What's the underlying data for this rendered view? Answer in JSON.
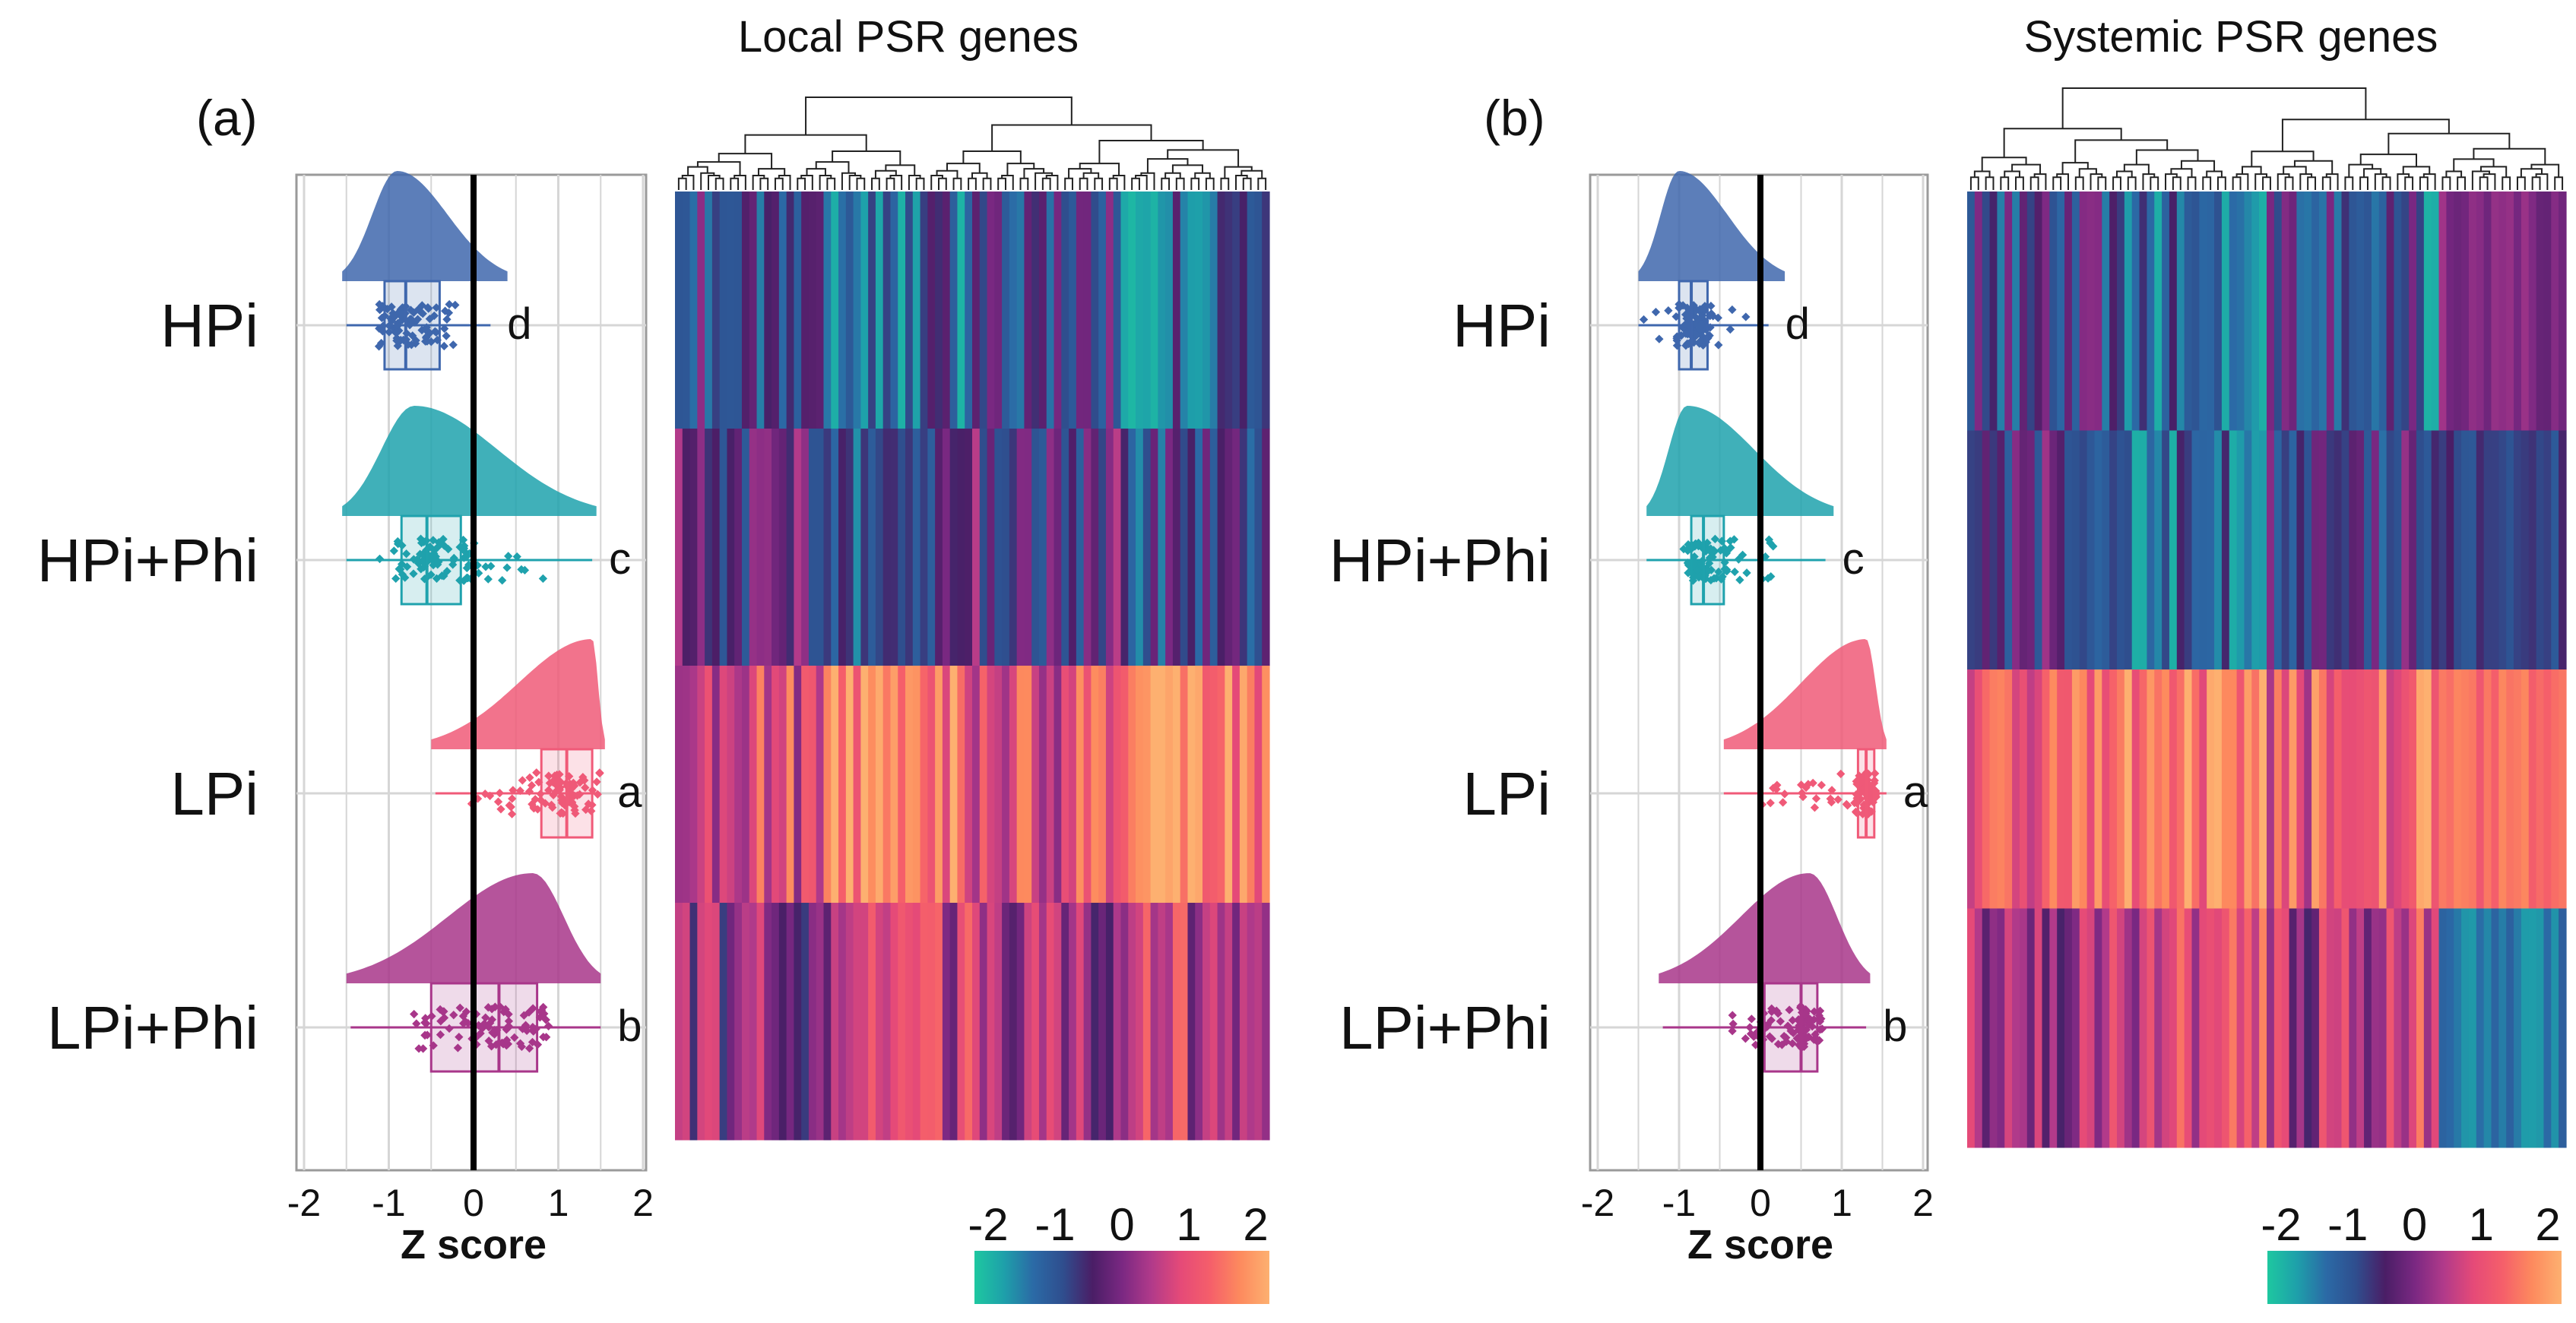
{
  "chart_data": [
    {
      "type": "raincloud",
      "panel_label": "(a)",
      "xlabel": "Z score",
      "xlim": [
        -2,
        2
      ],
      "xticks": [
        "-2",
        "-1",
        "0",
        "1",
        "2"
      ],
      "grid": true,
      "groups": [
        {
          "name": "HPi",
          "letter": "d",
          "color": "#3f67ad",
          "q1": -1.05,
          "median": -0.8,
          "q3": -0.4,
          "min": -1.5,
          "max": 0.2,
          "density_range": [
            -1.55,
            0.4
          ],
          "density_peak": -0.9
        },
        {
          "name": "HPi+Phi",
          "letter": "c",
          "color": "#1fa2ad",
          "q1": -0.85,
          "median": -0.55,
          "q3": -0.15,
          "min": -1.5,
          "max": 1.4,
          "density_range": [
            -1.55,
            1.45
          ],
          "density_peak": -0.7
        },
        {
          "name": "LPi",
          "letter": "a",
          "color": "#f05a78",
          "q1": 0.8,
          "median": 1.1,
          "q3": 1.4,
          "min": -0.45,
          "max": 1.5,
          "density_range": [
            -0.5,
            1.55
          ],
          "density_peak": 1.4
        },
        {
          "name": "LPi+Phi",
          "letter": "b",
          "color": "#a8368a",
          "q1": -0.5,
          "median": 0.3,
          "q3": 0.75,
          "min": -1.45,
          "max": 1.5,
          "density_range": [
            -1.5,
            1.5
          ],
          "density_peak": 0.7
        }
      ],
      "heatmap": {
        "title": "Local PSR genes",
        "rows": [
          "HPi",
          "HPi+Phi",
          "LPi",
          "LPi+Phi"
        ],
        "n_genes": 80
      },
      "colorbar": {
        "ticks": [
          "-2",
          "-1",
          "0",
          "1",
          "2"
        ],
        "range": [
          -2,
          2
        ]
      }
    },
    {
      "type": "raincloud",
      "panel_label": "(b)",
      "xlabel": "Z score",
      "xlim": [
        -2,
        2
      ],
      "xticks": [
        "-2",
        "-1",
        "0",
        "1",
        "2"
      ],
      "grid": true,
      "groups": [
        {
          "name": "HPi",
          "letter": "d",
          "color": "#3f67ad",
          "q1": -1.0,
          "median": -0.85,
          "q3": -0.65,
          "min": -1.5,
          "max": 0.1,
          "density_range": [
            -1.5,
            0.3
          ],
          "density_peak": -1.0
        },
        {
          "name": "HPi+Phi",
          "letter": "c",
          "color": "#1fa2ad",
          "q1": -0.85,
          "median": -0.7,
          "q3": -0.45,
          "min": -1.4,
          "max": 0.8,
          "density_range": [
            -1.4,
            0.9
          ],
          "density_peak": -0.9
        },
        {
          "name": "LPi",
          "letter": "a",
          "color": "#f05a78",
          "q1": 1.2,
          "median": 1.3,
          "q3": 1.4,
          "min": -0.45,
          "max": 1.55,
          "density_range": [
            -0.45,
            1.55
          ],
          "density_peak": 1.3
        },
        {
          "name": "LPi+Phi",
          "letter": "b",
          "color": "#a8368a",
          "q1": 0.05,
          "median": 0.5,
          "q3": 0.7,
          "min": -1.2,
          "max": 1.3,
          "density_range": [
            -1.25,
            1.35
          ],
          "density_peak": 0.6
        }
      ],
      "heatmap": {
        "title": "Systemic PSR genes",
        "rows": [
          "HPi",
          "HPi+Phi",
          "LPi",
          "LPi+Phi"
        ],
        "n_genes": 80
      },
      "colorbar": {
        "ticks": [
          "-2",
          "-1",
          "0",
          "1",
          "2"
        ],
        "range": [
          -2,
          2
        ]
      }
    }
  ],
  "colors": {
    "colorscale": [
      "#1ec8a0",
      "#1ea0aa",
      "#2b6aa6",
      "#2f4e8e",
      "#4a1e66",
      "#7a2882",
      "#b13a8a",
      "#e54a78",
      "#f55f6a",
      "#fd8a5e",
      "#fdb070"
    ],
    "axis": "#000000",
    "grid": "#d6d6d6"
  }
}
